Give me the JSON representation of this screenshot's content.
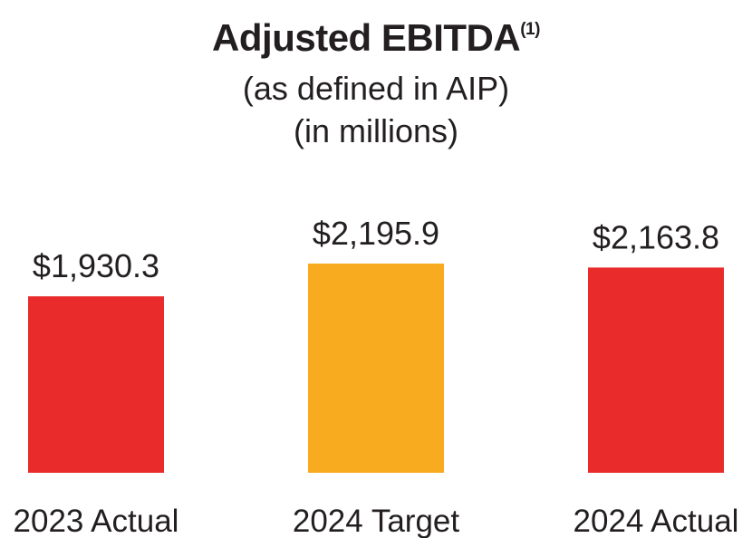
{
  "chart_data": {
    "type": "bar",
    "title": "Adjusted EBITDA",
    "title_footnote": "(1)",
    "subtitle_lines": [
      "(as defined in AIP)",
      "(in millions)"
    ],
    "categories": [
      "2023 Actual",
      "2024 Target",
      "2024 Actual"
    ],
    "values": [
      1930.3,
      2195.9,
      2163.8
    ],
    "value_labels": [
      "$1,930.3",
      "$2,195.9",
      "$2,163.8"
    ],
    "bar_colors": [
      "#e92b2b",
      "#f9ab1f",
      "#e92b2b"
    ],
    "xlabel": "",
    "ylabel": "",
    "ylim": [
      500,
      2195.9
    ],
    "grid": false,
    "legend": "none"
  }
}
